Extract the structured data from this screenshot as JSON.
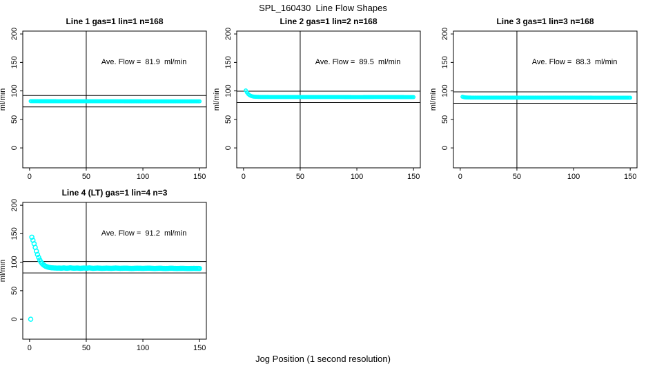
{
  "page": {
    "title": "SPL_160430  Line Flow Shapes",
    "xlabel": "Jog Position (1 second resolution)"
  },
  "chart_data": {
    "type": "scatter",
    "title": "SPL_160430  Line Flow Shapes",
    "xlabel": "Jog Position (1 second resolution)",
    "ylabel": "ml/min",
    "point_color": "#00FFFF",
    "axis_color": "#000000",
    "background_color": "#FFFFFF",
    "grid": false,
    "legend": false,
    "x_ticks": [
      0,
      50,
      100,
      150
    ],
    "y_ticks": [
      0,
      50,
      100,
      150,
      200
    ],
    "xlim": [
      -6,
      156
    ],
    "ylim": [
      -35,
      205
    ],
    "x_step": 1,
    "panels": [
      {
        "title": "Line 1 gas=1 lin=1 n=168",
        "n": 168,
        "ave_flow": 81.9,
        "ave_flow_label": "Ave. Flow =  81.9  ml/min",
        "ref_lines": [
          91.9,
          71.9
        ],
        "vline_x": 50,
        "marker_radius": 2.2,
        "anchors": [
          [
            1,
            82.0
          ],
          [
            150,
            81.7
          ]
        ],
        "outliers": []
      },
      {
        "title": "Line 2 gas=1 lin=2 n=168",
        "n": 168,
        "ave_flow": 89.5,
        "ave_flow_label": "Ave. Flow =  89.5  ml/min",
        "ref_lines": [
          99.5,
          79.5
        ],
        "vline_x": 50,
        "marker_radius": 2.2,
        "anchors": [
          [
            2,
            100.8
          ],
          [
            3,
            97.5
          ],
          [
            4,
            94.8
          ],
          [
            5,
            93.0
          ],
          [
            6,
            91.8
          ],
          [
            7,
            91.0
          ],
          [
            8,
            90.4
          ],
          [
            9,
            90.0
          ],
          [
            10,
            89.8
          ],
          [
            12,
            89.6
          ],
          [
            15,
            89.4
          ],
          [
            20,
            89.4
          ],
          [
            30,
            89.3
          ],
          [
            50,
            89.3
          ],
          [
            80,
            89.3
          ],
          [
            100,
            89.2
          ],
          [
            120,
            89.3
          ],
          [
            150,
            89.2
          ]
        ],
        "outliers": []
      },
      {
        "title": "Line 3 gas=1 lin=3 n=168",
        "n": 168,
        "ave_flow": 88.3,
        "ave_flow_label": "Ave. Flow =  88.3  ml/min",
        "ref_lines": [
          98.3,
          78.3
        ],
        "vline_x": 50,
        "marker_radius": 2.2,
        "anchors": [
          [
            2,
            89.8
          ],
          [
            3,
            89.2
          ],
          [
            4,
            88.8
          ],
          [
            5,
            88.6
          ],
          [
            7,
            88.4
          ],
          [
            10,
            88.3
          ],
          [
            20,
            88.2
          ],
          [
            50,
            88.2
          ],
          [
            100,
            88.2
          ],
          [
            150,
            88.1
          ]
        ],
        "outliers": []
      },
      {
        "title": "Line 4 (LT) gas=1 lin=4 n=3",
        "n": 3,
        "ave_flow": 91.2,
        "ave_flow_label": "Ave. Flow =  91.2  ml/min",
        "ref_lines": [
          101.2,
          81.2
        ],
        "vline_x": 50,
        "marker_radius": 3,
        "anchors": [
          [
            2,
            144
          ],
          [
            3,
            138.5
          ],
          [
            4,
            132.5
          ],
          [
            5,
            126
          ],
          [
            6,
            119.5
          ],
          [
            7,
            113.5
          ],
          [
            8,
            108.5
          ],
          [
            9,
            104
          ],
          [
            10,
            100.5
          ],
          [
            11,
            97.8
          ],
          [
            12,
            95.8
          ],
          [
            13,
            94.2
          ],
          [
            14,
            93.0
          ],
          [
            15,
            92.2
          ],
          [
            16,
            91.5
          ],
          [
            17,
            91.0
          ],
          [
            18,
            90.6
          ],
          [
            19,
            90.3
          ],
          [
            20,
            90.1
          ],
          [
            22,
            89.9
          ],
          [
            24,
            89.7
          ],
          [
            26,
            89.8
          ],
          [
            28,
            89.5
          ],
          [
            30,
            90.0
          ],
          [
            33,
            89.4
          ],
          [
            36,
            90.1
          ],
          [
            39,
            89.5
          ],
          [
            42,
            89.8
          ],
          [
            45,
            89.3
          ],
          [
            48,
            89.9
          ],
          [
            50,
            89.5
          ],
          [
            53,
            90.0
          ],
          [
            56,
            89.3
          ],
          [
            60,
            89.8
          ],
          [
            64,
            89.2
          ],
          [
            68,
            89.7
          ],
          [
            72,
            89.2
          ],
          [
            76,
            89.8
          ],
          [
            80,
            89.3
          ],
          [
            85,
            89.6
          ],
          [
            90,
            89.1
          ],
          [
            95,
            89.5
          ],
          [
            100,
            89.2
          ],
          [
            105,
            89.6
          ],
          [
            110,
            89.1
          ],
          [
            115,
            89.4
          ],
          [
            120,
            89.0
          ],
          [
            125,
            89.4
          ],
          [
            130,
            89.0
          ],
          [
            135,
            89.3
          ],
          [
            140,
            88.9
          ],
          [
            145,
            89.2
          ],
          [
            150,
            89.0
          ]
        ],
        "outliers": [
          [
            1,
            0
          ]
        ]
      }
    ]
  }
}
